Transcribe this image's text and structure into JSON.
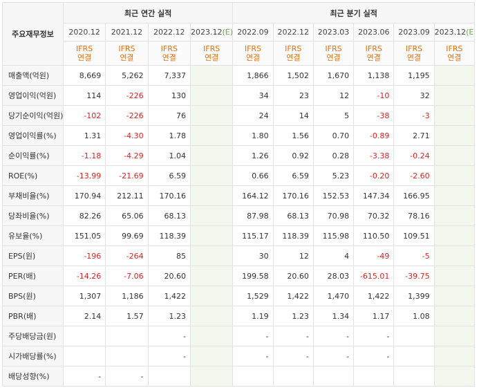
{
  "header": {
    "label_col": "주요재무정보",
    "annual_group": "최근 연간 실적",
    "quarter_group": "최근 분기 실적",
    "annual_periods": [
      {
        "label": "2020.12",
        "estimate": false
      },
      {
        "label": "2021.12",
        "estimate": false
      },
      {
        "label": "2022.12",
        "estimate": false
      },
      {
        "label": "2023.12",
        "estimate": true,
        "mark": "(E)"
      }
    ],
    "quarter_periods": [
      {
        "label": "2022.09",
        "estimate": false
      },
      {
        "label": "2022.12",
        "estimate": false
      },
      {
        "label": "2023.03",
        "estimate": false
      },
      {
        "label": "2023.06",
        "estimate": false
      },
      {
        "label": "2023.09",
        "estimate": false
      },
      {
        "label": "2023.12",
        "estimate": true,
        "mark": "(E)"
      }
    ],
    "basis_line1": "IFRS",
    "basis_line2": "연결"
  },
  "rows": [
    {
      "label": "매출액(억원)",
      "annual": [
        "8,669",
        "5,262",
        "7,337",
        ""
      ],
      "quarter": [
        "1,866",
        "1,502",
        "1,670",
        "1,138",
        "1,195",
        ""
      ]
    },
    {
      "label": "영업이익(억원)",
      "annual": [
        "114",
        "-226",
        "130",
        ""
      ],
      "quarter": [
        "34",
        "23",
        "12",
        "-10",
        "32",
        ""
      ]
    },
    {
      "label": "당기순이익(억원)",
      "annual": [
        "-102",
        "-226",
        "76",
        ""
      ],
      "quarter": [
        "24",
        "14",
        "5",
        "-38",
        "-3",
        ""
      ]
    },
    {
      "label": "영업이익률(%)",
      "annual": [
        "1.31",
        "-4.30",
        "1.78",
        ""
      ],
      "quarter": [
        "1.80",
        "1.56",
        "0.70",
        "-0.89",
        "2.71",
        ""
      ]
    },
    {
      "label": "순이익률(%)",
      "annual": [
        "-1.18",
        "-4.29",
        "1.04",
        ""
      ],
      "quarter": [
        "1.26",
        "0.92",
        "0.28",
        "-3.38",
        "-0.24",
        ""
      ]
    },
    {
      "label": "ROE(%)",
      "annual": [
        "-13.99",
        "-21.69",
        "6.59",
        ""
      ],
      "quarter": [
        "0.66",
        "6.59",
        "5.23",
        "-0.20",
        "-2.60",
        ""
      ]
    },
    {
      "label": "부채비율(%)",
      "annual": [
        "170.94",
        "212.11",
        "170.16",
        ""
      ],
      "quarter": [
        "164.12",
        "170.16",
        "152.53",
        "147.34",
        "166.95",
        ""
      ]
    },
    {
      "label": "당좌비율(%)",
      "annual": [
        "82.26",
        "65.06",
        "68.13",
        ""
      ],
      "quarter": [
        "87.98",
        "68.13",
        "70.98",
        "70.32",
        "78.16",
        ""
      ]
    },
    {
      "label": "유보율(%)",
      "annual": [
        "151.05",
        "99.69",
        "118.39",
        ""
      ],
      "quarter": [
        "115.17",
        "118.39",
        "115.98",
        "110.50",
        "109.51",
        ""
      ]
    },
    {
      "label": "EPS(원)",
      "annual": [
        "-196",
        "-264",
        "85",
        ""
      ],
      "quarter": [
        "30",
        "12",
        "4",
        "-49",
        "-5",
        ""
      ]
    },
    {
      "label": "PER(배)",
      "annual": [
        "-14.26",
        "-7.06",
        "20.60",
        ""
      ],
      "quarter": [
        "199.58",
        "20.60",
        "28.03",
        "-615.01",
        "-39.75",
        ""
      ]
    },
    {
      "label": "BPS(원)",
      "annual": [
        "1,307",
        "1,186",
        "1,422",
        ""
      ],
      "quarter": [
        "1,529",
        "1,422",
        "1,470",
        "1,422",
        "1,399",
        ""
      ]
    },
    {
      "label": "PBR(배)",
      "annual": [
        "2.14",
        "1.57",
        "1.23",
        ""
      ],
      "quarter": [
        "1.19",
        "1.23",
        "1.34",
        "1.17",
        "1.08",
        ""
      ]
    },
    {
      "label": "주당배당금(원)",
      "annual": [
        "",
        "",
        "-",
        ""
      ],
      "quarter": [
        "-",
        "-",
        "-",
        "-",
        "",
        ""
      ]
    },
    {
      "label": "시가배당률(%)",
      "annual": [
        "",
        "",
        "-",
        ""
      ],
      "quarter": [
        "-",
        "-",
        "-",
        "-",
        "",
        ""
      ]
    },
    {
      "label": "배당성향(%)",
      "annual": [
        "-",
        "-",
        "",
        ""
      ],
      "quarter": [
        "",
        "",
        "",
        "",
        "",
        ""
      ]
    }
  ],
  "colors": {
    "negative": "#e02020",
    "ifrs": "#e8700a",
    "estimate_bg": "#f3f8ee",
    "estimate_mark": "#6aa84f"
  }
}
